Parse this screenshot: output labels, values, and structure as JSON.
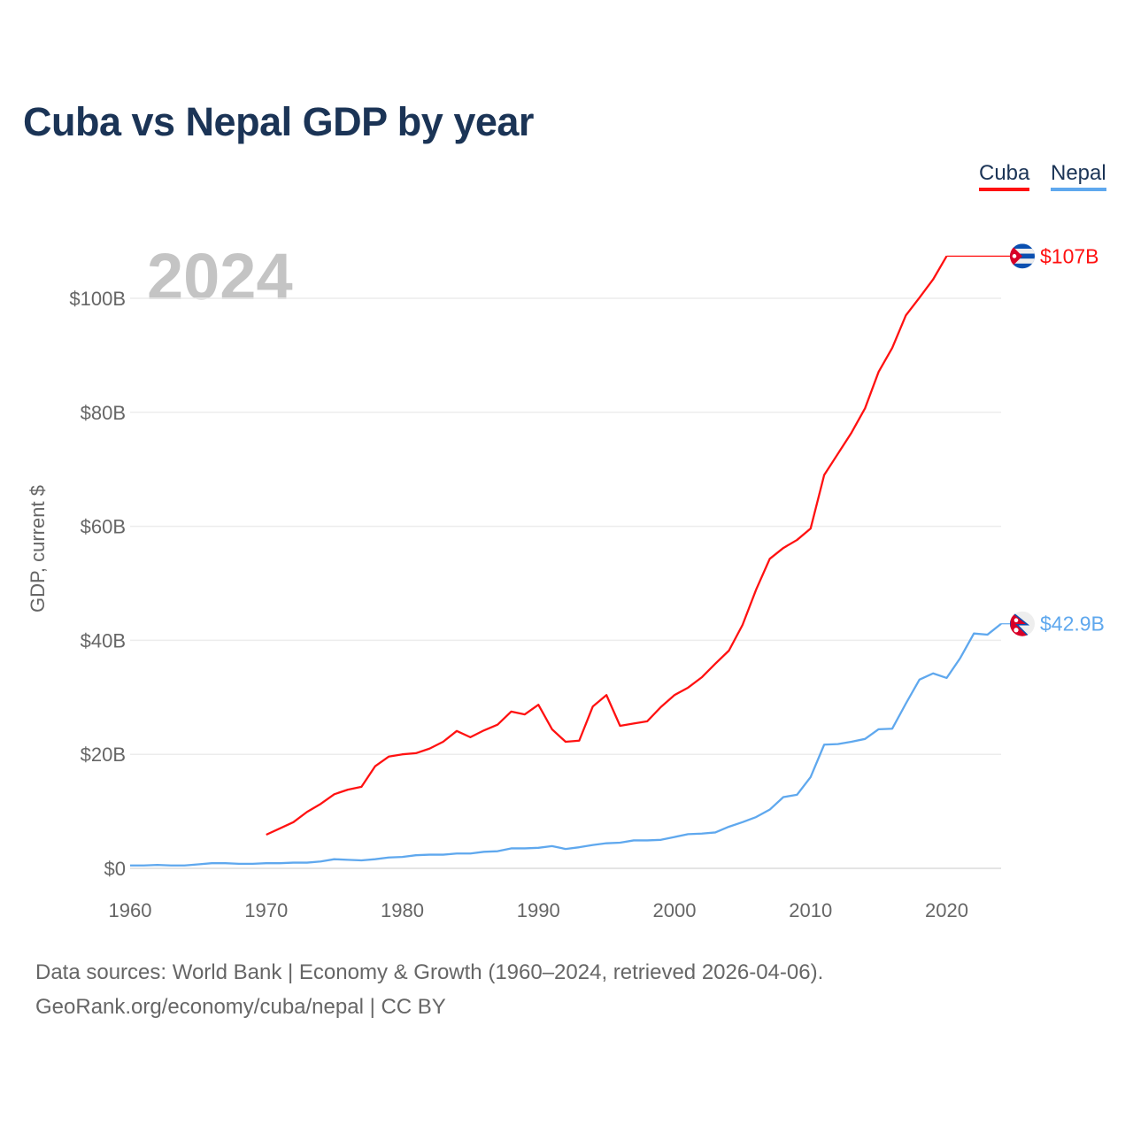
{
  "title": "Cuba vs Nepal GDP by year",
  "legend": [
    {
      "name": "Cuba",
      "color": "#ff1111"
    },
    {
      "name": "Nepal",
      "color": "#5fa8ee"
    }
  ],
  "year_watermark": "2024",
  "footer": {
    "source": "Data sources: World Bank | Economy & Growth (1960–2024, retrieved 2026-04-06).",
    "credit": "GeoRank.org/economy/cuba/nepal | CC BY"
  },
  "chart_data": {
    "type": "line",
    "title": "Cuba vs Nepal GDP by year",
    "xlabel": "",
    "ylabel": "GDP, current $",
    "xlim": [
      1960,
      2024
    ],
    "ylim": [
      0,
      110
    ],
    "unit": "billion USD",
    "grid": true,
    "legend_placement": "top-right",
    "x_ticks": [
      1960,
      1970,
      1980,
      1990,
      2000,
      2010,
      2020
    ],
    "x_tick_labels": [
      "1960",
      "1970",
      "1980",
      "1990",
      "2000",
      "2010",
      "2020"
    ],
    "y_ticks": [
      0,
      20,
      40,
      60,
      80,
      100
    ],
    "y_tick_labels": [
      "$0",
      "$20B",
      "$40B",
      "$60B",
      "$80B",
      "$100B"
    ],
    "series": [
      {
        "name": "Cuba",
        "color": "#ff1111",
        "end_label": "$107B",
        "flag": "cuba-flag",
        "start_year": 1970,
        "values": [
          5.9,
          7.0,
          8.1,
          9.9,
          11.3,
          13.0,
          13.8,
          14.3,
          17.9,
          19.6,
          20.0,
          20.2,
          21.0,
          22.2,
          24.1,
          23.0,
          24.2,
          25.2,
          27.5,
          27.0,
          28.7,
          24.4,
          22.2,
          22.4,
          28.4,
          30.4,
          25.0,
          25.4,
          25.8,
          28.3,
          30.4,
          31.7,
          33.5,
          35.9,
          38.2,
          42.7,
          48.9,
          54.3,
          56.2,
          57.6,
          59.6,
          69.0,
          72.7,
          76.4,
          80.7,
          87.1,
          91.3,
          97.0,
          100.1,
          103.3,
          107.4
        ]
      },
      {
        "name": "Nepal",
        "color": "#5fa8ee",
        "end_label": "$42.9B",
        "flag": "nepal-flag",
        "start_year": 1960,
        "values": [
          0.5,
          0.5,
          0.6,
          0.5,
          0.5,
          0.7,
          0.9,
          0.9,
          0.8,
          0.8,
          0.9,
          0.9,
          1.0,
          1.0,
          1.2,
          1.6,
          1.5,
          1.4,
          1.6,
          1.9,
          2.0,
          2.3,
          2.4,
          2.4,
          2.6,
          2.6,
          2.9,
          3.0,
          3.5,
          3.5,
          3.6,
          3.9,
          3.4,
          3.7,
          4.1,
          4.4,
          4.5,
          4.9,
          4.9,
          5.0,
          5.5,
          6.0,
          6.1,
          6.3,
          7.3,
          8.1,
          9.0,
          10.3,
          12.5,
          12.9,
          16.0,
          21.7,
          21.8,
          22.2,
          22.7,
          24.4,
          24.5,
          28.9,
          33.1,
          34.2,
          33.4,
          36.9,
          41.2,
          41.0,
          42.9
        ]
      }
    ]
  }
}
